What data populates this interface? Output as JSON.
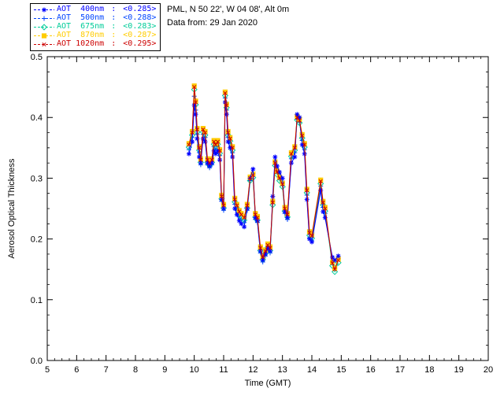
{
  "header": {
    "line1": "PML, N 50 22', W 04 08', Alt 0m",
    "line2": "Data from: 29 Jan 2020"
  },
  "legend": {
    "separator": " : ",
    "entries": [
      {
        "label": "AOT  400nm",
        "value": "<0.285>",
        "color": "#0000ff",
        "marker": "asterisk"
      },
      {
        "label": "AOT  500nm",
        "value": "<0.288>",
        "color": "#0044ff",
        "marker": "plus"
      },
      {
        "label": "AOT  675nm",
        "value": "<0.283>",
        "color": "#00cc99",
        "marker": "diamond"
      },
      {
        "label": "AOT  870nm",
        "value": "<0.287>",
        "color": "#ffcc00",
        "marker": "square"
      },
      {
        "label": "AOT 1020nm",
        "value": "<0.295>",
        "color": "#cc0000",
        "marker": "x"
      }
    ]
  },
  "chart_data": {
    "type": "line",
    "title": "",
    "xlabel": "Time (GMT)",
    "ylabel": "Aerosol Optical Thickness",
    "xlim": [
      5,
      20
    ],
    "ylim": [
      0.0,
      0.5
    ],
    "xticks": [
      5,
      6,
      7,
      8,
      9,
      10,
      11,
      12,
      13,
      14,
      15,
      16,
      17,
      18,
      19,
      20
    ],
    "yticks": [
      0.0,
      0.1,
      0.2,
      0.3,
      0.4,
      0.5
    ],
    "grid": false,
    "legend_position": "top-left",
    "x": [
      9.82,
      9.93,
      10.0,
      10.05,
      10.1,
      10.17,
      10.22,
      10.3,
      10.37,
      10.45,
      10.52,
      10.6,
      10.67,
      10.73,
      10.8,
      10.87,
      10.93,
      11.0,
      11.05,
      11.1,
      11.15,
      11.22,
      11.3,
      11.38,
      11.45,
      11.53,
      11.6,
      11.7,
      11.8,
      11.9,
      12.0,
      12.08,
      12.15,
      12.25,
      12.33,
      12.42,
      12.5,
      12.58,
      12.67,
      12.75,
      12.82,
      12.9,
      13.0,
      13.08,
      13.17,
      13.3,
      13.42,
      13.5,
      13.58,
      13.67,
      13.75,
      13.83,
      13.92,
      14.0,
      14.3,
      14.38,
      14.45,
      14.7,
      14.78,
      14.9
    ],
    "series": [
      {
        "name": "AOT 400nm",
        "wavelength_nm": 400,
        "mean": 0.285,
        "color": "#0000ff",
        "marker": "asterisk",
        "values": [
          0.34,
          0.36,
          0.42,
          0.405,
          0.365,
          0.335,
          0.325,
          0.365,
          0.36,
          0.325,
          0.32,
          0.325,
          0.345,
          0.34,
          0.345,
          0.33,
          0.265,
          0.25,
          0.425,
          0.405,
          0.36,
          0.35,
          0.335,
          0.25,
          0.24,
          0.23,
          0.225,
          0.22,
          0.25,
          0.3,
          0.315,
          0.235,
          0.23,
          0.18,
          0.165,
          0.175,
          0.185,
          0.18,
          0.27,
          0.335,
          0.32,
          0.31,
          0.3,
          0.245,
          0.235,
          0.325,
          0.335,
          0.405,
          0.4,
          0.355,
          0.34,
          0.265,
          0.2,
          0.195,
          0.28,
          0.245,
          0.235,
          0.17,
          0.165,
          0.172
        ]
      },
      {
        "name": "AOT 500nm",
        "wavelength_nm": 500,
        "mean": 0.288,
        "color": "#0044ff",
        "marker": "plus",
        "values": [
          0.347,
          0.367,
          0.435,
          0.412,
          0.372,
          0.342,
          0.322,
          0.372,
          0.367,
          0.322,
          0.317,
          0.322,
          0.352,
          0.347,
          0.352,
          0.337,
          0.262,
          0.247,
          0.432,
          0.412,
          0.367,
          0.357,
          0.342,
          0.257,
          0.247,
          0.237,
          0.232,
          0.227,
          0.247,
          0.296,
          0.307,
          0.232,
          0.227,
          0.177,
          0.162,
          0.172,
          0.182,
          0.177,
          0.262,
          0.327,
          0.312,
          0.302,
          0.292,
          0.242,
          0.232,
          0.332,
          0.342,
          0.397,
          0.392,
          0.362,
          0.347,
          0.272,
          0.202,
          0.197,
          0.287,
          0.252,
          0.242,
          0.162,
          0.152,
          0.167
        ]
      },
      {
        "name": "AOT 675nm",
        "wavelength_nm": 675,
        "mean": 0.283,
        "color": "#00cc99",
        "marker": "diamond",
        "values": [
          0.351,
          0.371,
          0.446,
          0.421,
          0.376,
          0.346,
          0.326,
          0.376,
          0.371,
          0.326,
          0.321,
          0.326,
          0.356,
          0.351,
          0.356,
          0.341,
          0.266,
          0.251,
          0.436,
          0.416,
          0.371,
          0.361,
          0.346,
          0.261,
          0.251,
          0.241,
          0.236,
          0.231,
          0.251,
          0.296,
          0.301,
          0.236,
          0.231,
          0.181,
          0.166,
          0.176,
          0.186,
          0.181,
          0.256,
          0.321,
          0.306,
          0.296,
          0.286,
          0.246,
          0.236,
          0.336,
          0.346,
          0.396,
          0.391,
          0.366,
          0.351,
          0.276,
          0.206,
          0.201,
          0.291,
          0.256,
          0.246,
          0.156,
          0.146,
          0.161
        ]
      },
      {
        "name": "AOT 870nm",
        "wavelength_nm": 870,
        "mean": 0.287,
        "color": "#ffcc00",
        "marker": "square",
        "values": [
          0.357,
          0.377,
          0.452,
          0.427,
          0.382,
          0.352,
          0.332,
          0.382,
          0.377,
          0.332,
          0.327,
          0.332,
          0.362,
          0.357,
          0.362,
          0.347,
          0.272,
          0.257,
          0.442,
          0.422,
          0.377,
          0.367,
          0.352,
          0.267,
          0.257,
          0.247,
          0.242,
          0.237,
          0.257,
          0.302,
          0.307,
          0.242,
          0.237,
          0.187,
          0.172,
          0.182,
          0.192,
          0.187,
          0.262,
          0.327,
          0.312,
          0.302,
          0.292,
          0.252,
          0.242,
          0.342,
          0.352,
          0.402,
          0.397,
          0.372,
          0.357,
          0.282,
          0.212,
          0.207,
          0.297,
          0.262,
          0.252,
          0.162,
          0.152,
          0.167
        ]
      },
      {
        "name": "AOT 1020nm",
        "wavelength_nm": 1020,
        "mean": 0.295,
        "color": "#cc0000",
        "marker": "x",
        "values": [
          0.355,
          0.375,
          0.45,
          0.425,
          0.38,
          0.35,
          0.33,
          0.38,
          0.375,
          0.33,
          0.325,
          0.33,
          0.36,
          0.355,
          0.36,
          0.345,
          0.27,
          0.255,
          0.44,
          0.42,
          0.375,
          0.365,
          0.35,
          0.265,
          0.255,
          0.245,
          0.24,
          0.235,
          0.255,
          0.3,
          0.305,
          0.24,
          0.235,
          0.185,
          0.17,
          0.18,
          0.19,
          0.185,
          0.26,
          0.325,
          0.31,
          0.3,
          0.29,
          0.25,
          0.24,
          0.34,
          0.35,
          0.4,
          0.395,
          0.37,
          0.355,
          0.28,
          0.21,
          0.205,
          0.295,
          0.26,
          0.25,
          0.16,
          0.15,
          0.165
        ]
      }
    ]
  }
}
